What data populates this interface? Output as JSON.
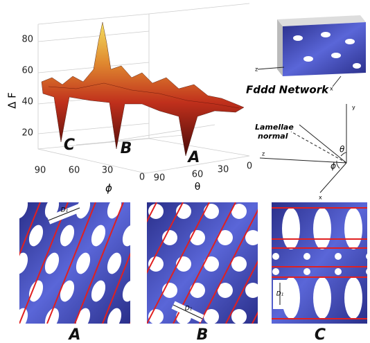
{
  "plot": {
    "y_axis_label": "Δ F",
    "y_ticks": [
      20,
      40,
      60,
      80
    ],
    "phi_label": "ϕ",
    "phi_ticks": [
      90,
      60,
      30,
      0
    ],
    "theta_label": "θ",
    "theta_ticks": [
      90,
      60,
      30,
      0
    ],
    "minima_labels": [
      "C",
      "B",
      "A"
    ]
  },
  "structure": {
    "title": "Fddd Network",
    "axes": [
      "z",
      "x"
    ]
  },
  "orientation": {
    "label_lines": [
      "Lamellae",
      "normal"
    ],
    "axes": [
      "y",
      "z",
      "x"
    ],
    "angles": [
      "θ",
      "ϕ"
    ]
  },
  "panels": [
    {
      "label": "A",
      "spacing": "D₁"
    },
    {
      "label": "B",
      "spacing": "D₁"
    },
    {
      "label": "C",
      "spacing": "D₁"
    }
  ]
}
